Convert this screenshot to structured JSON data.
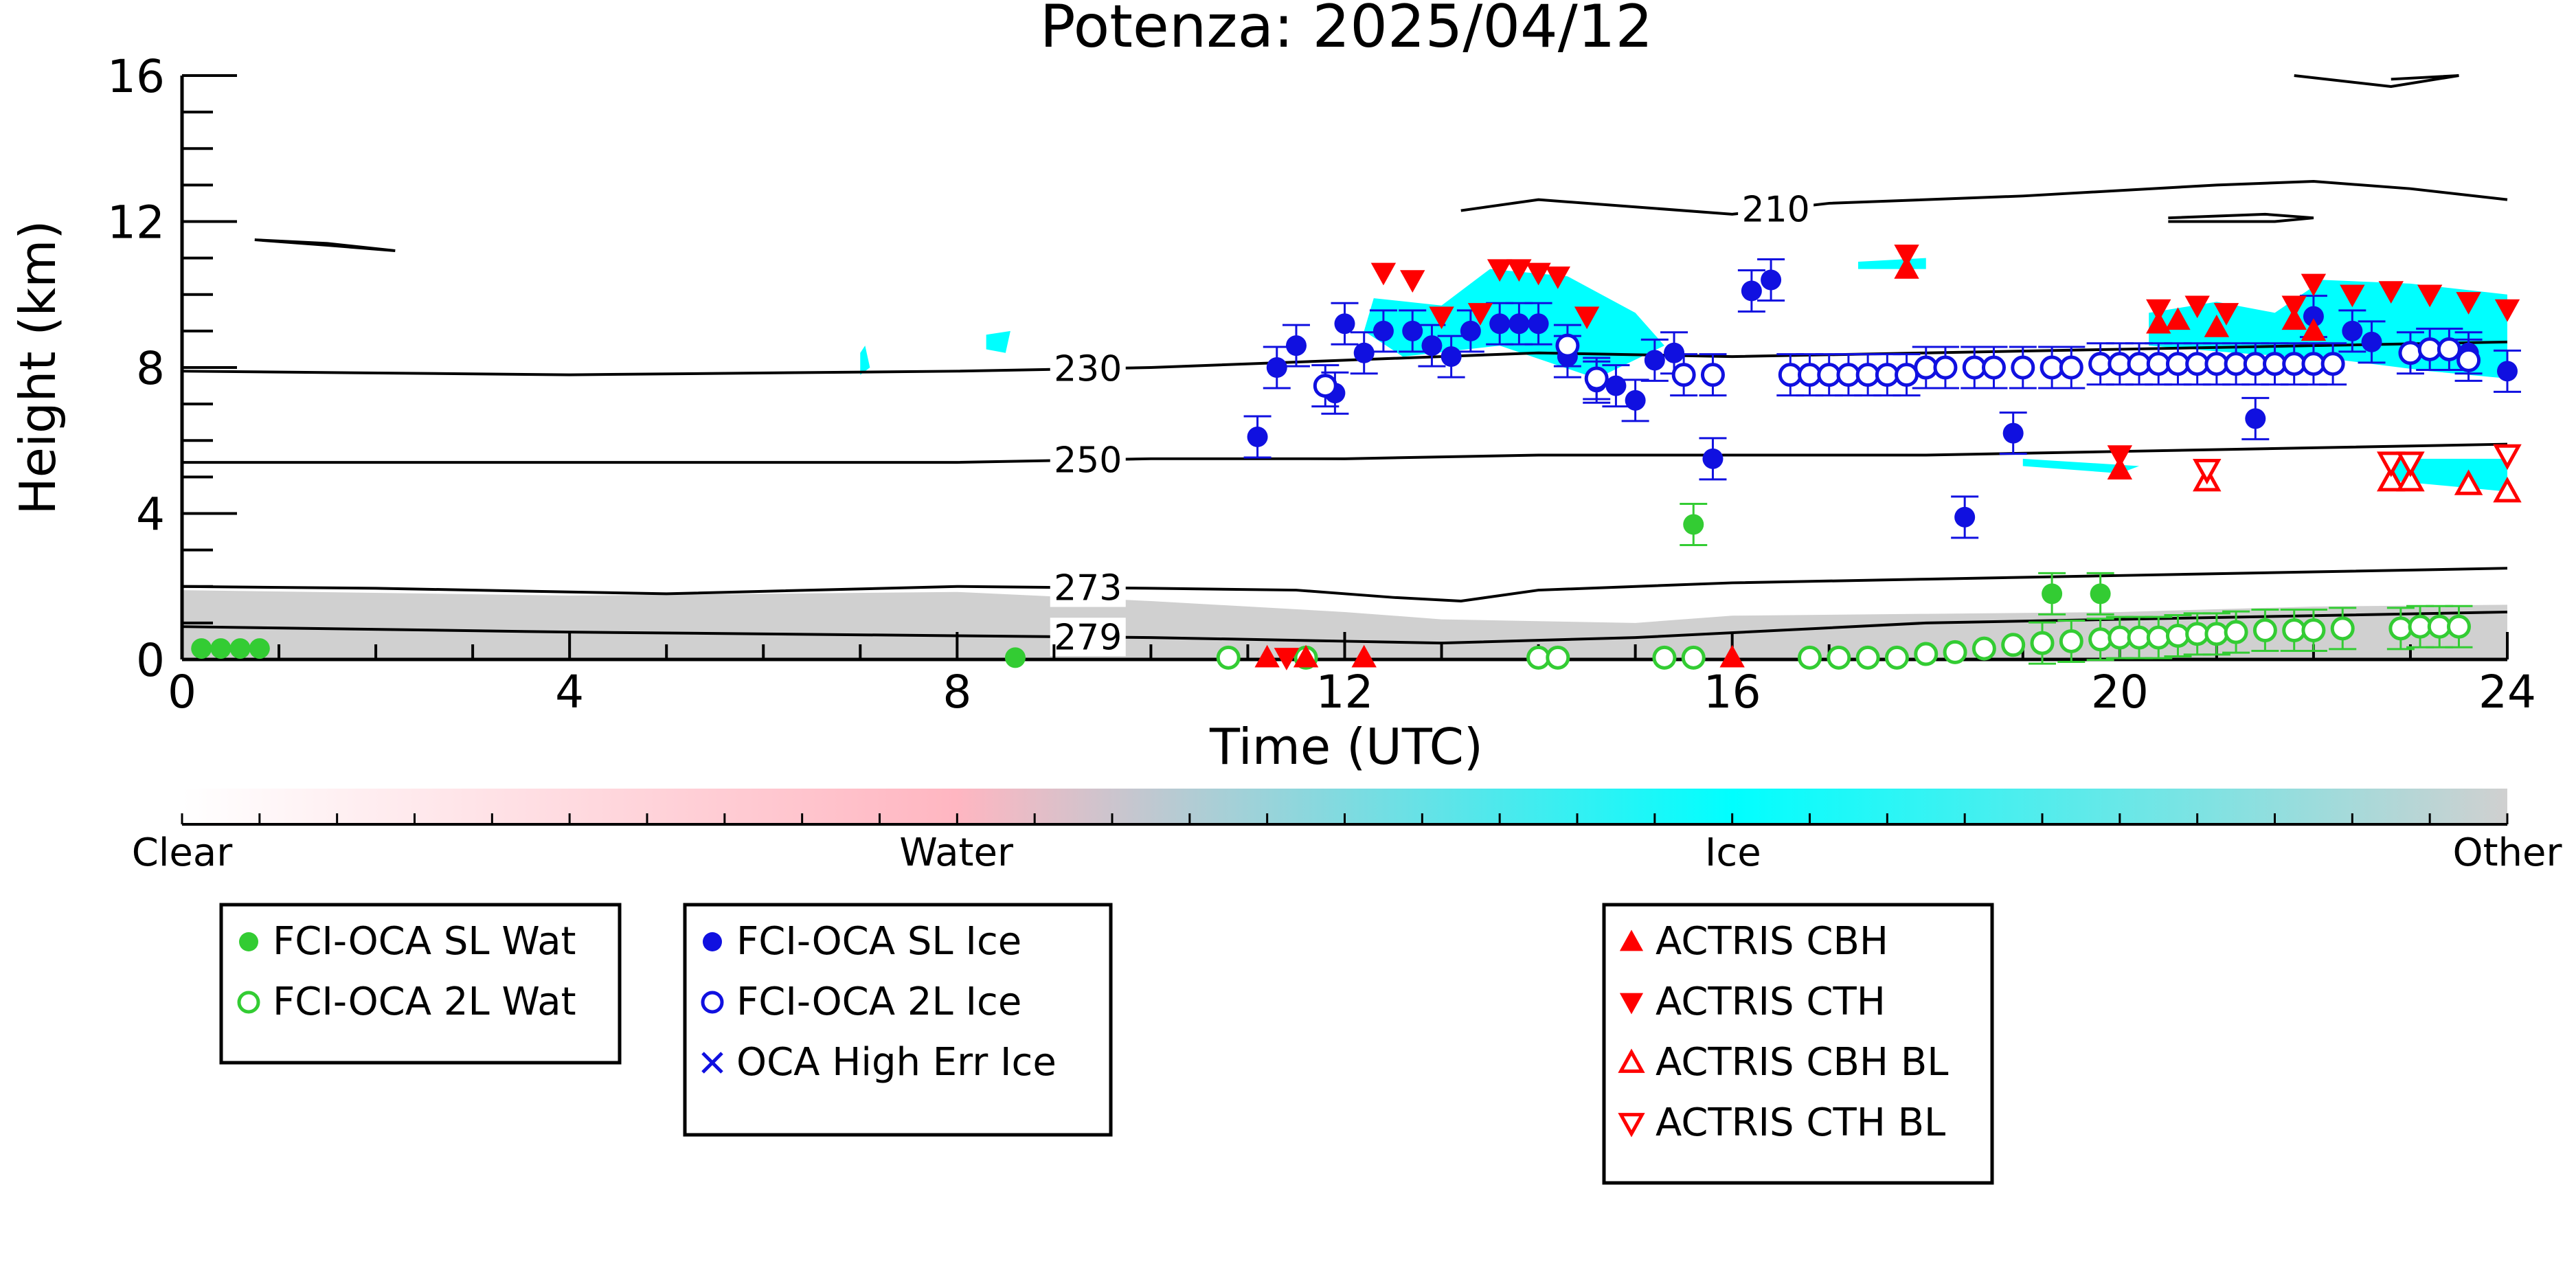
{
  "chart_data": {
    "type": "scatter",
    "title": "Potenza: 2025/04/12",
    "xlabel": "Time (UTC)",
    "ylabel": "Height (km)",
    "xlim": [
      0,
      24
    ],
    "ylim": [
      0,
      16
    ],
    "xticks": [
      0,
      4,
      8,
      12,
      16,
      20,
      24
    ],
    "yticks": [
      0,
      4,
      8,
      12,
      16
    ],
    "colorbar": {
      "labels": [
        "Clear",
        "Water",
        "Ice",
        "Other"
      ],
      "colors": [
        "#ffffff",
        "#ffb6c1",
        "#00ffff",
        "#d0d0d0"
      ]
    },
    "contours": [
      {
        "label": "210",
        "points": [
          [
            13.2,
            12.3
          ],
          [
            14,
            12.6
          ],
          [
            15,
            12.4
          ],
          [
            16,
            12.2
          ],
          [
            17,
            12.5
          ],
          [
            19,
            12.7
          ],
          [
            21,
            13.0
          ],
          [
            22,
            13.1
          ],
          [
            23,
            12.9
          ],
          [
            24,
            12.6
          ]
        ]
      },
      {
        "label": "230",
        "points": [
          [
            0,
            7.9
          ],
          [
            4,
            7.8
          ],
          [
            8,
            7.9
          ],
          [
            10,
            8.0
          ],
          [
            12,
            8.2
          ],
          [
            14,
            8.4
          ],
          [
            16,
            8.3
          ],
          [
            18,
            8.4
          ],
          [
            20,
            8.5
          ],
          [
            22,
            8.6
          ],
          [
            24,
            8.7
          ]
        ]
      },
      {
        "label": "250",
        "points": [
          [
            0,
            5.4
          ],
          [
            4,
            5.4
          ],
          [
            8,
            5.4
          ],
          [
            10,
            5.5
          ],
          [
            12,
            5.5
          ],
          [
            14,
            5.6
          ],
          [
            16,
            5.6
          ],
          [
            18,
            5.6
          ],
          [
            20,
            5.7
          ],
          [
            22,
            5.8
          ],
          [
            24,
            5.9
          ]
        ]
      },
      {
        "label": "273",
        "points": [
          [
            0,
            2.0
          ],
          [
            2,
            1.95
          ],
          [
            5,
            1.8
          ],
          [
            8,
            2.0
          ],
          [
            10,
            1.95
          ],
          [
            11.5,
            1.9
          ],
          [
            12.5,
            1.7
          ],
          [
            13.2,
            1.6
          ],
          [
            14,
            1.9
          ],
          [
            16,
            2.1
          ],
          [
            18,
            2.2
          ],
          [
            20,
            2.3
          ],
          [
            22,
            2.4
          ],
          [
            24,
            2.5
          ]
        ]
      },
      {
        "label": "279",
        "points": [
          [
            0,
            0.9
          ],
          [
            4,
            0.75
          ],
          [
            8,
            0.65
          ],
          [
            10,
            0.6
          ],
          [
            12,
            0.5
          ],
          [
            13,
            0.45
          ],
          [
            15,
            0.6
          ],
          [
            16.5,
            0.8
          ],
          [
            18,
            1.0
          ],
          [
            20,
            1.1
          ],
          [
            22,
            1.2
          ],
          [
            24,
            1.3
          ]
        ]
      }
    ],
    "series": [
      {
        "name": "FCI-OCA SL Wat",
        "marker": "filled-circle",
        "color": "#33cc33",
        "points": [
          [
            0.2,
            0.3
          ],
          [
            0.4,
            0.3
          ],
          [
            0.6,
            0.3
          ],
          [
            0.8,
            0.3
          ],
          [
            8.6,
            0.05
          ],
          [
            15.6,
            3.7
          ],
          [
            19.3,
            1.8
          ],
          [
            19.8,
            1.8
          ]
        ]
      },
      {
        "name": "FCI-OCA 2L Wat",
        "marker": "open-circle",
        "color": "#33cc33",
        "points": [
          [
            10.8,
            0.05
          ],
          [
            11.6,
            0.05
          ],
          [
            14.0,
            0.05
          ],
          [
            14.2,
            0.05
          ],
          [
            15.3,
            0.05
          ],
          [
            15.6,
            0.05
          ],
          [
            16.8,
            0.05
          ],
          [
            17.1,
            0.05
          ],
          [
            17.4,
            0.05
          ],
          [
            17.7,
            0.05
          ],
          [
            18.0,
            0.15
          ],
          [
            18.3,
            0.2
          ],
          [
            18.6,
            0.3
          ],
          [
            18.9,
            0.4
          ],
          [
            19.2,
            0.45
          ],
          [
            19.5,
            0.5
          ],
          [
            19.8,
            0.55
          ],
          [
            20.0,
            0.6
          ],
          [
            20.2,
            0.6
          ],
          [
            20.4,
            0.6
          ],
          [
            20.6,
            0.65
          ],
          [
            20.8,
            0.7
          ],
          [
            21.0,
            0.7
          ],
          [
            21.2,
            0.75
          ],
          [
            21.5,
            0.8
          ],
          [
            21.8,
            0.8
          ],
          [
            22.0,
            0.8
          ],
          [
            22.3,
            0.85
          ],
          [
            22.9,
            0.85
          ],
          [
            23.1,
            0.9
          ],
          [
            23.3,
            0.9
          ],
          [
            23.5,
            0.9
          ]
        ]
      },
      {
        "name": "FCI-OCA SL Ice",
        "marker": "filled-circle",
        "color": "#1010e0",
        "points": [
          [
            11.1,
            6.1
          ],
          [
            11.3,
            8.0
          ],
          [
            11.5,
            8.6
          ],
          [
            11.9,
            7.3
          ],
          [
            12.0,
            9.2
          ],
          [
            12.2,
            8.4
          ],
          [
            12.4,
            9.0
          ],
          [
            12.7,
            9.0
          ],
          [
            12.9,
            8.6
          ],
          [
            13.1,
            8.3
          ],
          [
            13.3,
            9.0
          ],
          [
            13.6,
            9.2
          ],
          [
            13.8,
            9.2
          ],
          [
            14.0,
            9.2
          ],
          [
            14.3,
            8.3
          ],
          [
            14.6,
            7.6
          ],
          [
            14.8,
            7.5
          ],
          [
            15.0,
            7.1
          ],
          [
            15.2,
            8.2
          ],
          [
            15.4,
            8.4
          ],
          [
            15.8,
            5.5
          ],
          [
            16.2,
            10.1
          ],
          [
            16.4,
            10.4
          ],
          [
            18.4,
            3.9
          ],
          [
            18.9,
            6.2
          ],
          [
            21.4,
            6.6
          ],
          [
            22.0,
            9.4
          ],
          [
            22.4,
            9.0
          ],
          [
            22.6,
            8.7
          ],
          [
            23.6,
            8.4
          ],
          [
            24.0,
            7.9
          ]
        ]
      },
      {
        "name": "FCI-OCA 2L Ice",
        "marker": "open-circle",
        "color": "#1010e0",
        "points": [
          [
            11.8,
            7.5
          ],
          [
            14.3,
            8.6
          ],
          [
            14.6,
            7.7
          ],
          [
            15.5,
            7.8
          ],
          [
            15.8,
            7.8
          ],
          [
            16.6,
            7.8
          ],
          [
            16.8,
            7.8
          ],
          [
            17.0,
            7.8
          ],
          [
            17.2,
            7.8
          ],
          [
            17.4,
            7.8
          ],
          [
            17.6,
            7.8
          ],
          [
            17.8,
            7.8
          ],
          [
            18.0,
            8.0
          ],
          [
            18.2,
            8.0
          ],
          [
            18.5,
            8.0
          ],
          [
            18.7,
            8.0
          ],
          [
            19.0,
            8.0
          ],
          [
            19.3,
            8.0
          ],
          [
            19.5,
            8.0
          ],
          [
            19.8,
            8.1
          ],
          [
            20.0,
            8.1
          ],
          [
            20.2,
            8.1
          ],
          [
            20.4,
            8.1
          ],
          [
            20.6,
            8.1
          ],
          [
            20.8,
            8.1
          ],
          [
            21.0,
            8.1
          ],
          [
            21.2,
            8.1
          ],
          [
            21.4,
            8.1
          ],
          [
            21.6,
            8.1
          ],
          [
            21.8,
            8.1
          ],
          [
            22.0,
            8.1
          ],
          [
            22.2,
            8.1
          ],
          [
            23.0,
            8.4
          ],
          [
            23.2,
            8.5
          ],
          [
            23.4,
            8.5
          ],
          [
            23.6,
            8.2
          ]
        ]
      },
      {
        "name": "OCA High Err Ice",
        "marker": "cross",
        "color": "#1010e0",
        "points": []
      },
      {
        "name": "ACTRIS CBH",
        "marker": "filled-triangle-up",
        "color": "#ff0000",
        "points": [
          [
            11.2,
            0.05
          ],
          [
            11.6,
            0.05
          ],
          [
            12.2,
            0.05
          ],
          [
            16.0,
            0.05
          ],
          [
            17.8,
            10.7
          ],
          [
            20.0,
            5.2
          ],
          [
            20.4,
            9.2
          ],
          [
            20.6,
            9.3
          ],
          [
            21.0,
            9.1
          ],
          [
            21.8,
            9.3
          ],
          [
            22.0,
            9.0
          ]
        ]
      },
      {
        "name": "ACTRIS CTH",
        "marker": "filled-triangle-down",
        "color": "#ff0000",
        "points": [
          [
            11.4,
            0.05
          ],
          [
            12.4,
            10.6
          ],
          [
            12.7,
            10.4
          ],
          [
            13.0,
            9.4
          ],
          [
            13.4,
            9.5
          ],
          [
            13.6,
            10.7
          ],
          [
            13.8,
            10.7
          ],
          [
            14.0,
            10.6
          ],
          [
            14.2,
            10.5
          ],
          [
            14.5,
            9.4
          ],
          [
            17.8,
            11.1
          ],
          [
            20.0,
            5.6
          ],
          [
            20.4,
            9.6
          ],
          [
            20.8,
            9.7
          ],
          [
            21.1,
            9.5
          ],
          [
            21.8,
            9.7
          ],
          [
            22.0,
            10.3
          ],
          [
            22.4,
            10.0
          ],
          [
            22.8,
            10.1
          ],
          [
            23.2,
            10.0
          ],
          [
            23.6,
            9.8
          ],
          [
            24.0,
            9.6
          ]
        ]
      },
      {
        "name": "ACTRIS CBH BL",
        "marker": "open-triangle-up",
        "color": "#ff0000",
        "points": [
          [
            20.9,
            4.9
          ],
          [
            22.8,
            4.9
          ],
          [
            23.0,
            4.9
          ],
          [
            23.6,
            4.8
          ],
          [
            24.0,
            4.6
          ]
        ]
      },
      {
        "name": "ACTRIS CTH BL",
        "marker": "open-triangle-down",
        "color": "#ff0000",
        "points": [
          [
            20.9,
            5.2
          ],
          [
            22.8,
            5.4
          ],
          [
            23.0,
            5.4
          ],
          [
            24.0,
            5.6
          ]
        ]
      }
    ],
    "legend": {
      "groups": [
        [
          "FCI-OCA SL Wat",
          "FCI-OCA 2L Wat"
        ],
        [
          "FCI-OCA SL Ice",
          "FCI-OCA 2L Ice",
          "OCA High Err Ice"
        ],
        [
          "ACTRIS CBH",
          "ACTRIS CTH",
          "ACTRIS CBH BL",
          "ACTRIS CTH BL"
        ]
      ],
      "placement": "bottom"
    }
  }
}
